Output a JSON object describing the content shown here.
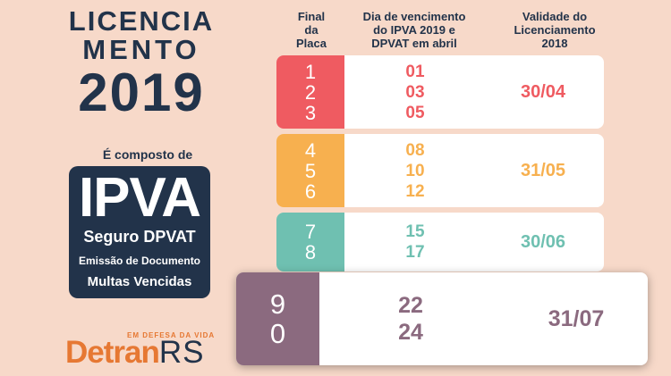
{
  "title": {
    "line1": "LICENCIA",
    "line2": "MENTO",
    "line3": "2019"
  },
  "composto": "É composto de",
  "ipva_box": {
    "ipva": "IPVA",
    "dpvat": "Seguro DPVAT",
    "emissao": "Emissão de Documento",
    "multas": "Multas Vencidas"
  },
  "logo": {
    "tagline": "EM DEFESA DA VIDA",
    "detran": "Detran",
    "rs": "RS"
  },
  "headers": {
    "col1": [
      "Final",
      "da",
      "Placa"
    ],
    "col2": [
      "Dia de vencimento",
      "do IPVA 2019 e",
      "DPVAT em abril"
    ],
    "col3": [
      "Validade do",
      "Licenciamento",
      "2018"
    ]
  },
  "rows": [
    {
      "plates": [
        "1",
        "2",
        "3"
      ],
      "days": [
        "01",
        "03",
        "05"
      ],
      "validity": "30/04",
      "color": "#ef5b61"
    },
    {
      "plates": [
        "4",
        "5",
        "6"
      ],
      "days": [
        "08",
        "10",
        "12"
      ],
      "validity": "31/05",
      "color": "#f7b04f"
    },
    {
      "plates": [
        "7",
        "8"
      ],
      "days": [
        "15",
        "17"
      ],
      "validity": "30/06",
      "color": "#6fc0b1"
    },
    {
      "plates": [
        "9",
        "0"
      ],
      "days": [
        "22",
        "24"
      ],
      "validity": "31/07",
      "color": "#8b6a7f"
    }
  ],
  "colors": {
    "background": "#f7d9c9",
    "navy": "#22334a",
    "orange": "#e67833"
  }
}
